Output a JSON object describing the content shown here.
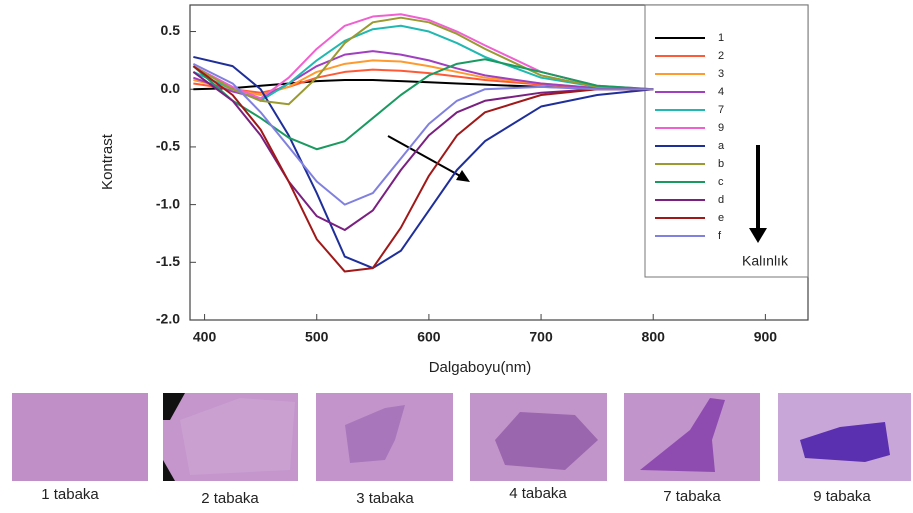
{
  "chart_data": {
    "type": "line",
    "x_label": "Dalgaboyu(nm)",
    "y_label": "Kontrast",
    "annotation": "Kalınlık",
    "x": [
      390,
      425,
      450,
      475,
      500,
      525,
      550,
      575,
      600,
      625,
      650,
      700,
      750,
      800
    ],
    "xlim": [
      387,
      938
    ],
    "xticks": [
      400,
      500,
      600,
      700,
      800,
      900
    ],
    "ylim": [
      -2.0,
      0.73
    ],
    "yticks": [
      {
        "value": -2.0,
        "label": "-2.0"
      },
      -1.5,
      {
        "value": -1.0,
        "label": "-1.0"
      },
      -0.5,
      {
        "value": 0.0,
        "label": "0.0"
      },
      0.5
    ],
    "series": [
      {
        "name": "1",
        "color": "#000000",
        "values": [
          0.0,
          0.01,
          0.03,
          0.05,
          0.07,
          0.08,
          0.08,
          0.07,
          0.06,
          0.05,
          0.04,
          0.02,
          0.01,
          0.0
        ]
      },
      {
        "name": "2",
        "color": "#ff5a36",
        "values": [
          0.05,
          0.0,
          -0.03,
          0.02,
          0.1,
          0.15,
          0.17,
          0.16,
          0.14,
          0.11,
          0.08,
          0.04,
          0.01,
          0.0
        ]
      },
      {
        "name": "3",
        "color": "#ff9a2e",
        "values": [
          0.08,
          0.0,
          -0.05,
          0.02,
          0.15,
          0.22,
          0.25,
          0.24,
          0.2,
          0.15,
          0.1,
          0.05,
          0.01,
          0.0
        ]
      },
      {
        "name": "4",
        "color": "#a040c0",
        "values": [
          0.1,
          -0.02,
          -0.08,
          0.05,
          0.2,
          0.3,
          0.33,
          0.3,
          0.25,
          0.18,
          0.12,
          0.05,
          0.01,
          0.0
        ]
      },
      {
        "name": "7",
        "color": "#20b8b0",
        "values": [
          0.15,
          0.0,
          -0.1,
          0.05,
          0.25,
          0.42,
          0.52,
          0.55,
          0.5,
          0.4,
          0.28,
          0.1,
          0.02,
          0.0
        ]
      },
      {
        "name": "9",
        "color": "#f060d0",
        "values": [
          0.2,
          0.02,
          -0.08,
          0.1,
          0.35,
          0.55,
          0.63,
          0.65,
          0.6,
          0.5,
          0.38,
          0.15,
          0.03,
          0.0
        ]
      },
      {
        "name": "a",
        "color": "#1f2f9a",
        "values": [
          0.28,
          0.2,
          0.0,
          -0.4,
          -0.9,
          -1.45,
          -1.55,
          -1.4,
          -1.05,
          -0.7,
          -0.45,
          -0.15,
          -0.05,
          0.0
        ]
      },
      {
        "name": "b",
        "color": "#9a9a30",
        "values": [
          0.2,
          0.0,
          -0.1,
          -0.13,
          0.1,
          0.4,
          0.58,
          0.62,
          0.58,
          0.48,
          0.35,
          0.12,
          0.02,
          0.0
        ]
      },
      {
        "name": "c",
        "color": "#1a9a60",
        "values": [
          0.2,
          -0.1,
          -0.25,
          -0.42,
          -0.52,
          -0.45,
          -0.25,
          -0.05,
          0.12,
          0.22,
          0.26,
          0.15,
          0.03,
          0.0
        ]
      },
      {
        "name": "d",
        "color": "#7a2080",
        "values": [
          0.15,
          -0.1,
          -0.4,
          -0.8,
          -1.1,
          -1.22,
          -1.05,
          -0.7,
          -0.4,
          -0.2,
          -0.1,
          -0.03,
          0.0,
          0.0
        ]
      },
      {
        "name": "e",
        "color": "#a01818",
        "values": [
          0.2,
          -0.05,
          -0.35,
          -0.8,
          -1.3,
          -1.58,
          -1.55,
          -1.2,
          -0.75,
          -0.4,
          -0.2,
          -0.05,
          0.0,
          0.0
        ]
      },
      {
        "name": "f",
        "color": "#8080e0",
        "values": [
          0.22,
          0.05,
          -0.2,
          -0.5,
          -0.8,
          -1.0,
          -0.9,
          -0.6,
          -0.3,
          -0.1,
          0.0,
          0.02,
          0.0,
          0.0
        ]
      }
    ]
  },
  "samples": [
    "1 tabaka",
    "2 tabaka",
    "3 tabaka",
    "4 tabaka",
    "7 tabaka",
    "9 tabaka"
  ]
}
